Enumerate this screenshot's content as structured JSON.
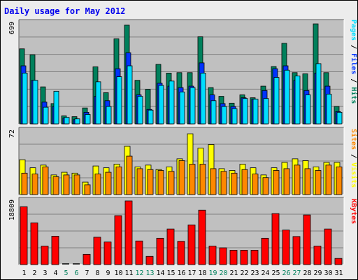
{
  "title": "Daily usage for May 2012",
  "colors": {
    "hits": "#00805c",
    "files": "#0033ff",
    "pages": "#00ddff",
    "visits": "#ffff00",
    "sites": "#ff8800",
    "kbytes": "#ff0000",
    "weekday_label": "#000000",
    "weekend_label": "#00805c",
    "plot_bg": "#c0c0c0",
    "grid": "#808080"
  },
  "chart_data": [
    {
      "type": "bar",
      "panel": "hits-files-pages",
      "ymax_label": "699",
      "ylim": [
        0,
        699
      ],
      "legend": [
        {
          "label": "Pages",
          "color_key": "pages"
        },
        {
          "label": "Files",
          "color_key": "files"
        },
        {
          "label": "Hits",
          "color_key": "hits"
        }
      ],
      "series": [
        {
          "name": "Hits",
          "color_key": "hits",
          "values": [
            517,
            476,
            255,
            140,
            55,
            50,
            110,
            393,
            215,
            586,
            680,
            300,
            238,
            410,
            350,
            353,
            353,
            600,
            250,
            190,
            143,
            200,
            180,
            260,
            395,
            555,
            353,
            345,
            689,
            353,
            120
          ]
        },
        {
          "name": "Files",
          "color_key": "files",
          "values": [
            400,
            300,
            150,
            120,
            40,
            30,
            80,
            190,
            160,
            380,
            490,
            200,
            100,
            280,
            260,
            250,
            260,
            420,
            200,
            140,
            120,
            180,
            170,
            230,
            380,
            400,
            300,
            230,
            350,
            260,
            85
          ]
        },
        {
          "name": "Pages",
          "color_key": "pages",
          "values": [
            350,
            300,
            115,
            225,
            45,
            35,
            65,
            290,
            120,
            325,
            400,
            190,
            95,
            265,
            295,
            220,
            250,
            350,
            160,
            120,
            105,
            175,
            170,
            175,
            320,
            370,
            330,
            200,
            415,
            205,
            80
          ]
        }
      ]
    },
    {
      "type": "bar",
      "panel": "visits-sites",
      "ymax_label": "72",
      "ylim": [
        0,
        72
      ],
      "legend": [
        {
          "label": "Sites",
          "color_key": "sites"
        },
        {
          "label": "Visits",
          "color_key": "visits"
        }
      ],
      "series": [
        {
          "name": "Visits",
          "color_key": "visits",
          "values": [
            39,
            30,
            33,
            22,
            25,
            24,
            14,
            32,
            30,
            34,
            54,
            31,
            33,
            28,
            31,
            40,
            68,
            52,
            56,
            29,
            27,
            34,
            30,
            22,
            30,
            36,
            40,
            38,
            31,
            36,
            36
          ]
        },
        {
          "name": "Sites",
          "color_key": "sites",
          "values": [
            24,
            23,
            31,
            20,
            22,
            22,
            11,
            23,
            25,
            31,
            43,
            29,
            28,
            27,
            26,
            38,
            34,
            34,
            29,
            26,
            24,
            28,
            23,
            19,
            27,
            29,
            33,
            29,
            27,
            33,
            31
          ]
        }
      ]
    },
    {
      "type": "bar",
      "panel": "kbytes",
      "ymax_label": "18809",
      "ylim": [
        0,
        18809
      ],
      "legend": [
        {
          "label": "KBytes",
          "color_key": "kbytes"
        }
      ],
      "series": [
        {
          "name": "KBytes",
          "color_key": "kbytes",
          "values": [
            16900,
            12200,
            5400,
            8300,
            0,
            0,
            3000,
            8000,
            6600,
            14300,
            18600,
            6900,
            2400,
            7700,
            10400,
            6800,
            11600,
            15900,
            5400,
            4900,
            4200,
            4200,
            4200,
            7700,
            14900,
            10100,
            8200,
            14500,
            5400,
            10400,
            1800
          ]
        }
      ]
    }
  ],
  "x_labels": [
    {
      "text": "1",
      "weekend": false
    },
    {
      "text": "2",
      "weekend": false
    },
    {
      "text": "3",
      "weekend": false
    },
    {
      "text": "4",
      "weekend": false
    },
    {
      "text": "5",
      "weekend": true
    },
    {
      "text": "6",
      "weekend": true
    },
    {
      "text": "7",
      "weekend": false
    },
    {
      "text": "8",
      "weekend": false
    },
    {
      "text": "9",
      "weekend": false
    },
    {
      "text": "10",
      "weekend": false
    },
    {
      "text": "11",
      "weekend": false
    },
    {
      "text": "12",
      "weekend": true
    },
    {
      "text": "13",
      "weekend": true
    },
    {
      "text": "14",
      "weekend": false
    },
    {
      "text": "15",
      "weekend": false
    },
    {
      "text": "16",
      "weekend": false
    },
    {
      "text": "17",
      "weekend": false
    },
    {
      "text": "18",
      "weekend": false
    },
    {
      "text": "19",
      "weekend": true
    },
    {
      "text": "20",
      "weekend": true
    },
    {
      "text": "21",
      "weekend": false
    },
    {
      "text": "22",
      "weekend": false
    },
    {
      "text": "23",
      "weekend": false
    },
    {
      "text": "24",
      "weekend": false
    },
    {
      "text": "25",
      "weekend": false
    },
    {
      "text": "26",
      "weekend": true
    },
    {
      "text": "27",
      "weekend": true
    },
    {
      "text": "28",
      "weekend": false
    },
    {
      "text": "29",
      "weekend": false
    },
    {
      "text": "30",
      "weekend": false
    },
    {
      "text": "31",
      "weekend": false
    }
  ]
}
